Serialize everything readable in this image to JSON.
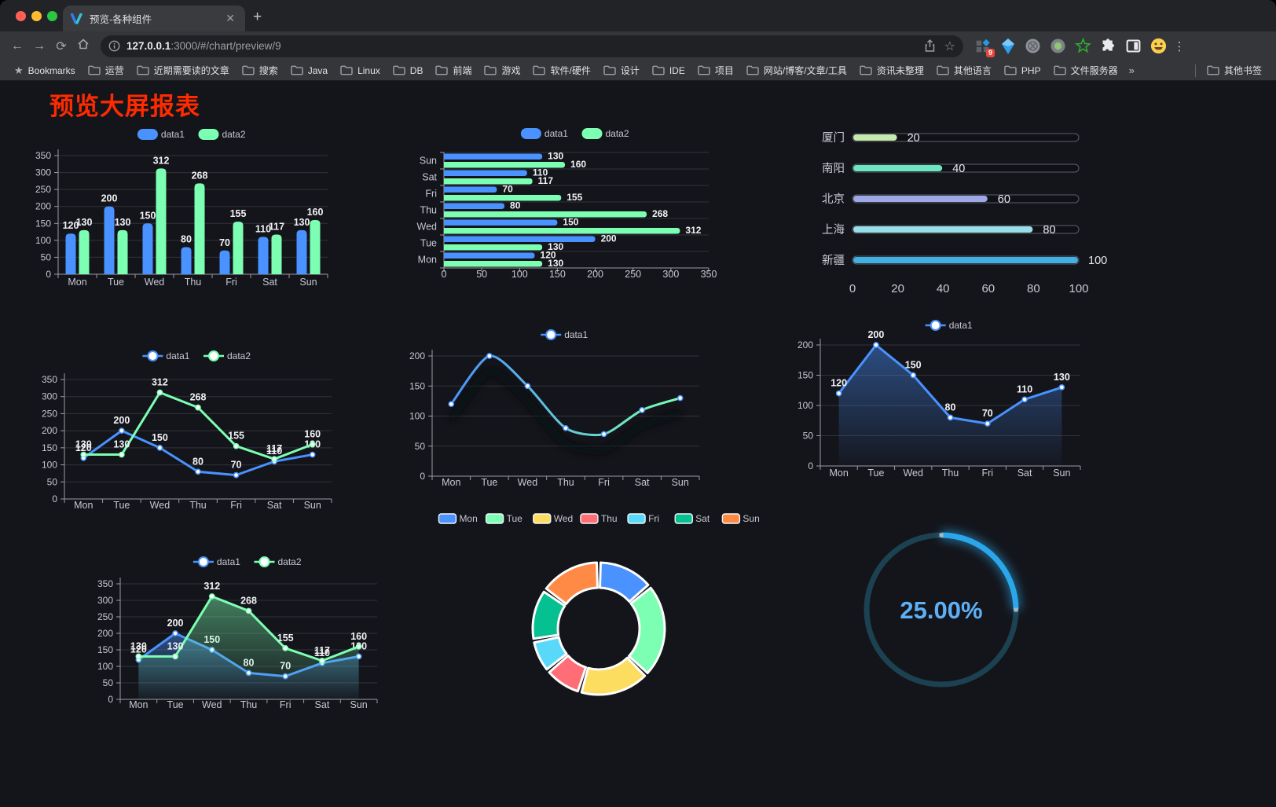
{
  "browser": {
    "tab_title": "预览-各种组件",
    "url_host": "127.0.0.1",
    "url_rest": ":3000/#/chart/preview/9",
    "extension_badge": "9",
    "bookmarks_label": "Bookmarks",
    "bookmarks": [
      "运营",
      "近期需要读的文章",
      "搜索",
      "Java",
      "Linux",
      "DB",
      "前端",
      "游戏",
      "软件/硬件",
      "设计",
      "IDE",
      "项目",
      "网站/博客/文章/工具",
      "资讯未整理",
      "其他语言",
      "PHP",
      "文件服务器"
    ],
    "overflow_chevron": "»",
    "other_bookmarks": "其他书签"
  },
  "page": {
    "title": "预览大屏报表"
  },
  "chart_data": [
    {
      "id": "grouped-bar",
      "type": "bar",
      "categories": [
        "Mon",
        "Tue",
        "Wed",
        "Thu",
        "Fri",
        "Sat",
        "Sun"
      ],
      "series": [
        {
          "name": "data1",
          "color": "#4992ff",
          "values": [
            120,
            200,
            150,
            80,
            70,
            110,
            130
          ]
        },
        {
          "name": "data2",
          "color": "#7cffb2",
          "values": [
            130,
            130,
            312,
            268,
            155,
            117,
            160
          ]
        }
      ],
      "ylim": [
        0,
        350
      ],
      "yticks": [
        0,
        50,
        100,
        150,
        200,
        250,
        300,
        350
      ],
      "legend_position": "top",
      "grid": true,
      "data_labels": true
    },
    {
      "id": "grouped-hbar",
      "type": "hbar",
      "categories": [
        "Mon",
        "Tue",
        "Wed",
        "Thu",
        "Fri",
        "Sat",
        "Sun"
      ],
      "series": [
        {
          "name": "data1",
          "color": "#4992ff",
          "values": [
            120,
            200,
            150,
            80,
            70,
            110,
            130
          ]
        },
        {
          "name": "data2",
          "color": "#7cffb2",
          "values": [
            130,
            130,
            312,
            268,
            155,
            117,
            160
          ]
        }
      ],
      "xlim": [
        0,
        350
      ],
      "xticks": [
        0,
        50,
        100,
        150,
        200,
        250,
        300,
        350
      ],
      "legend_position": "top",
      "data_labels": true
    },
    {
      "id": "progress-bars",
      "type": "progress",
      "rows": [
        {
          "label": "厦门",
          "value": 20,
          "color": "#c4ebad"
        },
        {
          "label": "南阳",
          "value": 40,
          "color": "#6be6c1"
        },
        {
          "label": "北京",
          "value": 60,
          "color": "#a0a7e6"
        },
        {
          "label": "上海",
          "value": 80,
          "color": "#96dee8"
        },
        {
          "label": "新疆",
          "value": 100,
          "color": "#3fb1e3"
        }
      ],
      "xlim": [
        0,
        100
      ],
      "xticks": [
        0,
        20,
        40,
        60,
        80,
        100
      ]
    },
    {
      "id": "line-pair",
      "type": "line",
      "categories": [
        "Mon",
        "Tue",
        "Wed",
        "Thu",
        "Fri",
        "Sat",
        "Sun"
      ],
      "series": [
        {
          "name": "data1",
          "color": "#4992ff",
          "values": [
            120,
            200,
            150,
            80,
            70,
            110,
            130
          ]
        },
        {
          "name": "data2",
          "color": "#7cffb2",
          "values": [
            130,
            130,
            312,
            268,
            155,
            117,
            160
          ]
        }
      ],
      "ylim": [
        0,
        350
      ],
      "yticks": [
        0,
        50,
        100,
        150,
        200,
        250,
        300,
        350
      ],
      "legend_position": "top",
      "data_labels": true
    },
    {
      "id": "gradient-line",
      "type": "line",
      "categories": [
        "Mon",
        "Tue",
        "Wed",
        "Thu",
        "Fri",
        "Sat",
        "Sun"
      ],
      "series": [
        {
          "name": "data1",
          "gradient": [
            "#4992ff",
            "#7cffb2"
          ],
          "values": [
            120,
            200,
            150,
            80,
            70,
            110,
            130
          ],
          "smooth": true,
          "shadow": true
        }
      ],
      "ylim": [
        0,
        200
      ],
      "yticks": [
        0,
        50,
        100,
        150,
        200
      ],
      "legend_position": "top",
      "data_labels": false
    },
    {
      "id": "area-line",
      "type": "line",
      "categories": [
        "Mon",
        "Tue",
        "Wed",
        "Thu",
        "Fri",
        "Sat",
        "Sun"
      ],
      "series": [
        {
          "name": "data1",
          "color": "#4992ff",
          "values": [
            120,
            200,
            150,
            80,
            70,
            110,
            130
          ],
          "area": true
        }
      ],
      "ylim": [
        0,
        200
      ],
      "yticks": [
        0,
        50,
        100,
        150,
        200
      ],
      "legend_position": "top",
      "data_labels": true
    },
    {
      "id": "area-line-pair",
      "type": "line",
      "categories": [
        "Mon",
        "Tue",
        "Wed",
        "Thu",
        "Fri",
        "Sat",
        "Sun"
      ],
      "series": [
        {
          "name": "data1",
          "color": "#4992ff",
          "values": [
            120,
            200,
            150,
            80,
            70,
            110,
            130
          ],
          "area": true
        },
        {
          "name": "data2",
          "color": "#7cffb2",
          "values": [
            130,
            130,
            312,
            268,
            155,
            117,
            160
          ],
          "area": true
        }
      ],
      "ylim": [
        0,
        350
      ],
      "yticks": [
        0,
        50,
        100,
        150,
        200,
        250,
        300,
        350
      ],
      "legend_position": "top",
      "data_labels": true
    },
    {
      "id": "donut",
      "type": "pie",
      "labels": [
        "Mon",
        "Tue",
        "Wed",
        "Thu",
        "Fri",
        "Sat",
        "Sun"
      ],
      "values": [
        120,
        200,
        150,
        80,
        70,
        110,
        130
      ],
      "colors": [
        "#4992ff",
        "#7cffb2",
        "#fddd60",
        "#ff6e76",
        "#58d9f9",
        "#05c091",
        "#ff8a45"
      ],
      "inner_radius_ratio": 0.62,
      "legend_position": "top"
    },
    {
      "id": "gauge",
      "type": "gauge",
      "value": 25,
      "display": "25.00%",
      "color": "#2aa7ea",
      "track_color": "#1c4150",
      "text_color": "#5db0f5"
    }
  ]
}
